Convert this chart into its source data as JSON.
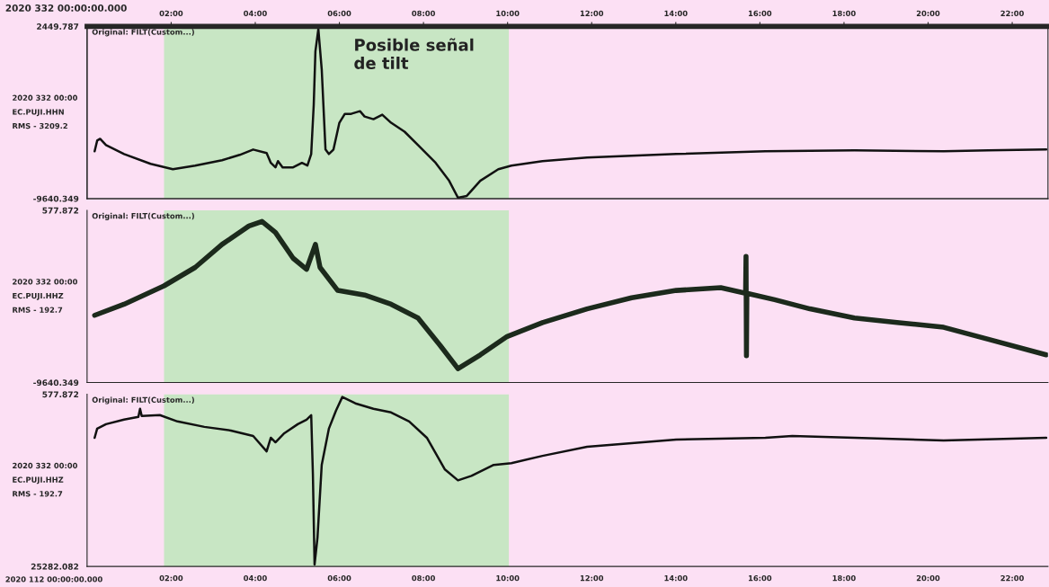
{
  "chart_data": [
    {
      "type": "line",
      "ylabel": "2020 332 00:00\nEC.PUJI.HHN\nRMS - 3209.2",
      "annotations": [
        "2020 332 00:00:00.000",
        "Original: FILT(Custom...)"
      ],
      "x": [
        0.18,
        0.24,
        0.31,
        0.45,
        0.88,
        1.51,
        2.04,
        2.57,
        3.21,
        3.63,
        3.95,
        4.27,
        4.37,
        4.48,
        4.54,
        4.65,
        4.9,
        5.11,
        5.24,
        5.33,
        5.39,
        5.43,
        5.5,
        5.58,
        5.67,
        5.75,
        5.86,
        6.0,
        6.13,
        6.28,
        6.49,
        6.6,
        6.81,
        7.02,
        7.23,
        7.55,
        7.87,
        8.29,
        8.61,
        8.82,
        9.03,
        9.35,
        9.78,
        10.09,
        10.83,
        11.89,
        14.01,
        16.13,
        18.25,
        20.37,
        21.43,
        22.81
      ],
      "series": [
        {
          "color": "#111111",
          "values": [
            -6320,
            -5568,
            -5443,
            -5881,
            -6508,
            -7197,
            -7573,
            -7322,
            -6946,
            -6570,
            -6195,
            -6445,
            -7134,
            -7448,
            -7009,
            -7448,
            -7448,
            -7134,
            -7322,
            -6508,
            -3063,
            696,
            2262,
            -557,
            -6195,
            -6508,
            -6195,
            -4315,
            -3689,
            -3689,
            -3501,
            -3877,
            -4065,
            -3752,
            -4315,
            -4942,
            -5881,
            -7134,
            -8387,
            -9577,
            -9452,
            -8387,
            -7573,
            -7322,
            -7009,
            -6758,
            -6508,
            -6320,
            -6257,
            -6320,
            -6257,
            -6195
          ]
        }
      ],
      "xlim": [
        0,
        22.85
      ],
      "ylim": [
        -9640.349,
        2449.787
      ],
      "yticks": [
        -9640.349,
        2449.787
      ],
      "x2lim": [
        0,
        22.85
      ],
      "x2ticks": [
        {
          "value": 2,
          "label": "02:00"
        },
        {
          "value": 4,
          "label": "04:00"
        },
        {
          "value": 6,
          "label": "06:00"
        },
        {
          "value": 8,
          "label": "08:00"
        },
        {
          "value": 10,
          "label": "10:00"
        },
        {
          "value": 12,
          "label": "12:00"
        },
        {
          "value": 14,
          "label": "14:00"
        },
        {
          "value": 16,
          "label": "16:00"
        },
        {
          "value": 18,
          "label": "18:00"
        },
        {
          "value": 20,
          "label": "20:00"
        },
        {
          "value": 22,
          "label": "22:00"
        }
      ],
      "tick_labels": "y",
      "line_style": "solid",
      "grid": false,
      "legend": false,
      "bands": [
        {
          "axis": "x",
          "from": 1.83,
          "to": 10.03,
          "label": "Posible señal\nde tilt",
          "color": "#c8e6c4"
        }
      ]
    },
    {
      "type": "line",
      "ylabel": "2020 332 00:00\nEC.PUJI.HHZ\nRMS - 192.7",
      "annotations": [
        "Original: FILT(Custom...)"
      ],
      "x": [
        0.18,
        0.88,
        1.83,
        2.57,
        3.21,
        3.85,
        4.16,
        4.48,
        4.9,
        5.22,
        5.43,
        5.54,
        5.96,
        6.6,
        7.23,
        7.87,
        8.4,
        8.82,
        9.35,
        9.99,
        10.83,
        11.89,
        12.95,
        14.01,
        15.07,
        15.66,
        15.67,
        15.68,
        15.69,
        16.35,
        17.19,
        18.25,
        19.31,
        20.37,
        21.43,
        22.81
      ],
      "series": [
        {
          "color": "#1c2a1c",
          "values": [
            -5651,
            -4995,
            -3903,
            -2810,
            -1444,
            -351,
            -78,
            -733,
            -2263,
            -2919,
            -1444,
            -2810,
            -4176,
            -4449,
            -4995,
            -5815,
            -7454,
            -8820,
            -8000,
            -6908,
            -6088,
            -5268,
            -4613,
            -4176,
            -4012,
            -4340,
            -2154,
            -8055,
            -4340,
            -4722,
            -5268,
            -5815,
            -6088,
            -6361,
            -7072,
            -8000
          ]
        }
      ],
      "xlim": [
        0,
        22.85
      ],
      "ylim": [
        -9640.349,
        577.872
      ],
      "yticks": [
        -9640.349,
        577.872
      ],
      "tick_labels": "y",
      "line_style": "solid",
      "grid": false,
      "legend": false,
      "bands": [
        {
          "axis": "x",
          "from": 1.83,
          "to": 10.03,
          "label": null,
          "color": "#c8e6c4"
        }
      ]
    },
    {
      "type": "line",
      "ylabel": "2020 332 00:00\nEC.PUJI.HHZ\nRMS - 192.7",
      "annotations": [
        "Original: FILT(Custom...)",
        "2020 112 00:00:00.000"
      ],
      "x": [
        0.18,
        0.24,
        0.45,
        0.88,
        1.22,
        1.26,
        1.3,
        1.73,
        2.15,
        2.79,
        3.42,
        3.95,
        4.27,
        4.37,
        4.48,
        4.69,
        5.01,
        5.22,
        5.33,
        5.37,
        5.41,
        5.48,
        5.58,
        5.75,
        5.92,
        6.07,
        6.38,
        6.81,
        7.23,
        7.66,
        8.08,
        8.51,
        8.82,
        9.14,
        9.67,
        10.09,
        10.83,
        11.89,
        14.01,
        16.13,
        16.77,
        18.25,
        20.37,
        22.81
      ],
      "series": [
        {
          "color": "#111111",
          "values": [
            6818,
            5518,
            4868,
            4218,
            3828,
            2658,
            3698,
            3568,
            4478,
            5258,
            5778,
            6558,
            8768,
            6818,
            7468,
            6168,
            4868,
            4218,
            3568,
            12018,
            25018,
            21118,
            10718,
            5518,
            2918,
            968,
            1878,
            2658,
            3178,
            4478,
            6818,
            11368,
            12928,
            12278,
            10718,
            10458,
            9418,
            8118,
            7078,
            6818,
            6558,
            6818,
            7208,
            6818
          ]
        }
      ],
      "xlim": [
        0,
        22.85
      ],
      "ylim": [
        25282.082,
        577.872
      ],
      "yticks": [
        25282.082,
        577.872
      ],
      "xticks": [
        {
          "value": 2,
          "label": "02:00"
        },
        {
          "value": 4,
          "label": "04:00"
        },
        {
          "value": 6,
          "label": "06:00"
        },
        {
          "value": 8,
          "label": "08:00"
        },
        {
          "value": 10,
          "label": "10:00"
        },
        {
          "value": 12,
          "label": "12:00"
        },
        {
          "value": 14,
          "label": "14:00"
        },
        {
          "value": 16,
          "label": "16:00"
        },
        {
          "value": 18,
          "label": "18:00"
        },
        {
          "value": 20,
          "label": "20:00"
        },
        {
          "value": 22,
          "label": "22:00"
        }
      ],
      "line_style": "solid",
      "grid": false,
      "legend": false,
      "bands": [
        {
          "axis": "x",
          "from": 1.83,
          "to": 10.03,
          "label": null,
          "color": "#c8e6c4"
        }
      ]
    }
  ]
}
